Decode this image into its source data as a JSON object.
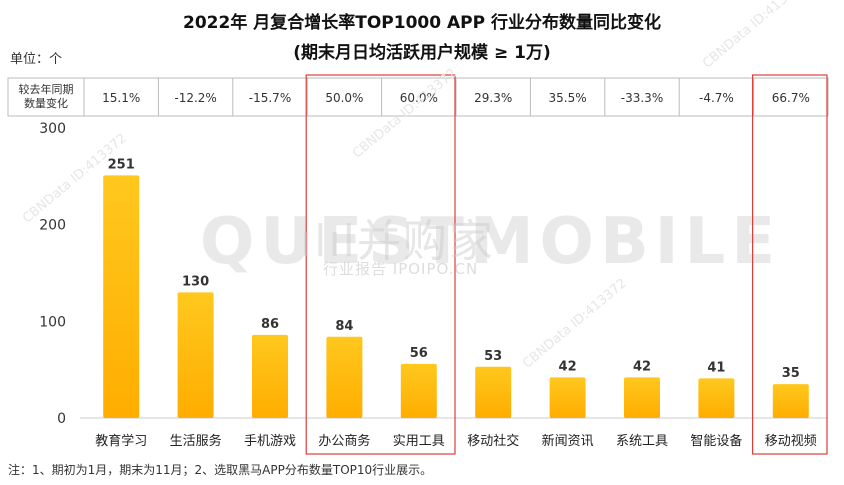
{
  "title_line1": "2022年 月复合增长率TOP1000 APP 行业分布数量同比变化",
  "title_line2": "(期末月日均活跃用户规模 ≥ 1万)",
  "unit_label": "单位：个",
  "yoy_row_label": [
    "较去年同期",
    "数量变化"
  ],
  "yoy_values": [
    "15.1%",
    "-12.2%",
    "-15.7%",
    "50.0%",
    "60.0%",
    "29.3%",
    "35.5%",
    "-33.3%",
    "-4.7%",
    "66.7%"
  ],
  "highlighted_categories": [
    "办公商务",
    "实用工具",
    "移动视频"
  ],
  "highlight_color": "#e03c3c",
  "bar_color_top": "#ffc81e",
  "bar_color_bottom": "#ffad00",
  "watermark_big": "ılıl并购家",
  "watermark_small": "行业报告 IPOIPO.CN",
  "watermark_brand": "QUESTMOBILE",
  "watermark_diag": "CBNData ID:413372",
  "footnote": "注：1、期初为1月，期末为11月；2、选取黑马APP分布数量TOP10行业展示。",
  "chart_data": {
    "type": "bar",
    "title": "2022年 月复合增长率TOP1000 APP 行业分布数量同比变化",
    "subtitle": "(期末月日均活跃用户规模 ≥ 1万)",
    "ylabel": "单位：个",
    "categories": [
      "教育学习",
      "生活服务",
      "手机游戏",
      "办公商务",
      "实用工具",
      "移动社交",
      "新闻资讯",
      "系统工具",
      "智能设备",
      "移动视频"
    ],
    "values": [
      251,
      130,
      86,
      84,
      56,
      53,
      42,
      42,
      41,
      35
    ],
    "yticks": [
      0,
      100,
      200,
      300
    ],
    "ylim": [
      0,
      300
    ],
    "grid": false,
    "legend": "none"
  }
}
